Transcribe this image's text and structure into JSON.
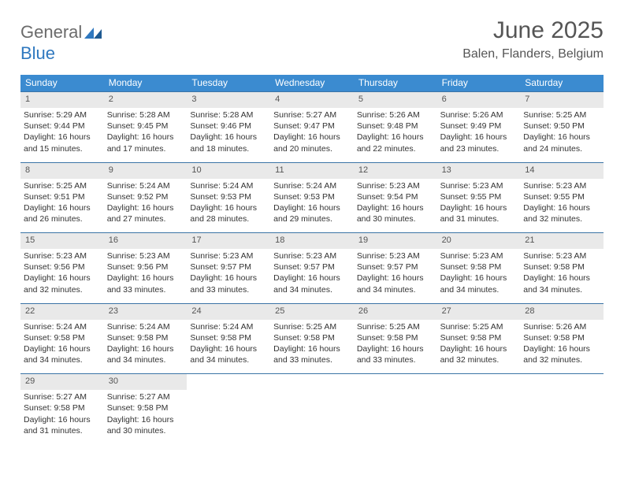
{
  "logo": {
    "part1": "General",
    "part2": "Blue"
  },
  "title": "June 2025",
  "location": "Balen, Flanders, Belgium",
  "colors": {
    "header_bg": "#3b8bd0",
    "row_border": "#3b74a6",
    "daynum_bg": "#e9e9e9",
    "text": "#333333",
    "title_text": "#555555"
  },
  "weekdays": [
    "Sunday",
    "Monday",
    "Tuesday",
    "Wednesday",
    "Thursday",
    "Friday",
    "Saturday"
  ],
  "weeks": [
    [
      {
        "n": "1",
        "sr": "Sunrise: 5:29 AM",
        "ss": "Sunset: 9:44 PM",
        "dl": "Daylight: 16 hours and 15 minutes."
      },
      {
        "n": "2",
        "sr": "Sunrise: 5:28 AM",
        "ss": "Sunset: 9:45 PM",
        "dl": "Daylight: 16 hours and 17 minutes."
      },
      {
        "n": "3",
        "sr": "Sunrise: 5:28 AM",
        "ss": "Sunset: 9:46 PM",
        "dl": "Daylight: 16 hours and 18 minutes."
      },
      {
        "n": "4",
        "sr": "Sunrise: 5:27 AM",
        "ss": "Sunset: 9:47 PM",
        "dl": "Daylight: 16 hours and 20 minutes."
      },
      {
        "n": "5",
        "sr": "Sunrise: 5:26 AM",
        "ss": "Sunset: 9:48 PM",
        "dl": "Daylight: 16 hours and 22 minutes."
      },
      {
        "n": "6",
        "sr": "Sunrise: 5:26 AM",
        "ss": "Sunset: 9:49 PM",
        "dl": "Daylight: 16 hours and 23 minutes."
      },
      {
        "n": "7",
        "sr": "Sunrise: 5:25 AM",
        "ss": "Sunset: 9:50 PM",
        "dl": "Daylight: 16 hours and 24 minutes."
      }
    ],
    [
      {
        "n": "8",
        "sr": "Sunrise: 5:25 AM",
        "ss": "Sunset: 9:51 PM",
        "dl": "Daylight: 16 hours and 26 minutes."
      },
      {
        "n": "9",
        "sr": "Sunrise: 5:24 AM",
        "ss": "Sunset: 9:52 PM",
        "dl": "Daylight: 16 hours and 27 minutes."
      },
      {
        "n": "10",
        "sr": "Sunrise: 5:24 AM",
        "ss": "Sunset: 9:53 PM",
        "dl": "Daylight: 16 hours and 28 minutes."
      },
      {
        "n": "11",
        "sr": "Sunrise: 5:24 AM",
        "ss": "Sunset: 9:53 PM",
        "dl": "Daylight: 16 hours and 29 minutes."
      },
      {
        "n": "12",
        "sr": "Sunrise: 5:23 AM",
        "ss": "Sunset: 9:54 PM",
        "dl": "Daylight: 16 hours and 30 minutes."
      },
      {
        "n": "13",
        "sr": "Sunrise: 5:23 AM",
        "ss": "Sunset: 9:55 PM",
        "dl": "Daylight: 16 hours and 31 minutes."
      },
      {
        "n": "14",
        "sr": "Sunrise: 5:23 AM",
        "ss": "Sunset: 9:55 PM",
        "dl": "Daylight: 16 hours and 32 minutes."
      }
    ],
    [
      {
        "n": "15",
        "sr": "Sunrise: 5:23 AM",
        "ss": "Sunset: 9:56 PM",
        "dl": "Daylight: 16 hours and 32 minutes."
      },
      {
        "n": "16",
        "sr": "Sunrise: 5:23 AM",
        "ss": "Sunset: 9:56 PM",
        "dl": "Daylight: 16 hours and 33 minutes."
      },
      {
        "n": "17",
        "sr": "Sunrise: 5:23 AM",
        "ss": "Sunset: 9:57 PM",
        "dl": "Daylight: 16 hours and 33 minutes."
      },
      {
        "n": "18",
        "sr": "Sunrise: 5:23 AM",
        "ss": "Sunset: 9:57 PM",
        "dl": "Daylight: 16 hours and 34 minutes."
      },
      {
        "n": "19",
        "sr": "Sunrise: 5:23 AM",
        "ss": "Sunset: 9:57 PM",
        "dl": "Daylight: 16 hours and 34 minutes."
      },
      {
        "n": "20",
        "sr": "Sunrise: 5:23 AM",
        "ss": "Sunset: 9:58 PM",
        "dl": "Daylight: 16 hours and 34 minutes."
      },
      {
        "n": "21",
        "sr": "Sunrise: 5:23 AM",
        "ss": "Sunset: 9:58 PM",
        "dl": "Daylight: 16 hours and 34 minutes."
      }
    ],
    [
      {
        "n": "22",
        "sr": "Sunrise: 5:24 AM",
        "ss": "Sunset: 9:58 PM",
        "dl": "Daylight: 16 hours and 34 minutes."
      },
      {
        "n": "23",
        "sr": "Sunrise: 5:24 AM",
        "ss": "Sunset: 9:58 PM",
        "dl": "Daylight: 16 hours and 34 minutes."
      },
      {
        "n": "24",
        "sr": "Sunrise: 5:24 AM",
        "ss": "Sunset: 9:58 PM",
        "dl": "Daylight: 16 hours and 34 minutes."
      },
      {
        "n": "25",
        "sr": "Sunrise: 5:25 AM",
        "ss": "Sunset: 9:58 PM",
        "dl": "Daylight: 16 hours and 33 minutes."
      },
      {
        "n": "26",
        "sr": "Sunrise: 5:25 AM",
        "ss": "Sunset: 9:58 PM",
        "dl": "Daylight: 16 hours and 33 minutes."
      },
      {
        "n": "27",
        "sr": "Sunrise: 5:25 AM",
        "ss": "Sunset: 9:58 PM",
        "dl": "Daylight: 16 hours and 32 minutes."
      },
      {
        "n": "28",
        "sr": "Sunrise: 5:26 AM",
        "ss": "Sunset: 9:58 PM",
        "dl": "Daylight: 16 hours and 32 minutes."
      }
    ],
    [
      {
        "n": "29",
        "sr": "Sunrise: 5:27 AM",
        "ss": "Sunset: 9:58 PM",
        "dl": "Daylight: 16 hours and 31 minutes."
      },
      {
        "n": "30",
        "sr": "Sunrise: 5:27 AM",
        "ss": "Sunset: 9:58 PM",
        "dl": "Daylight: 16 hours and 30 minutes."
      },
      null,
      null,
      null,
      null,
      null
    ]
  ]
}
